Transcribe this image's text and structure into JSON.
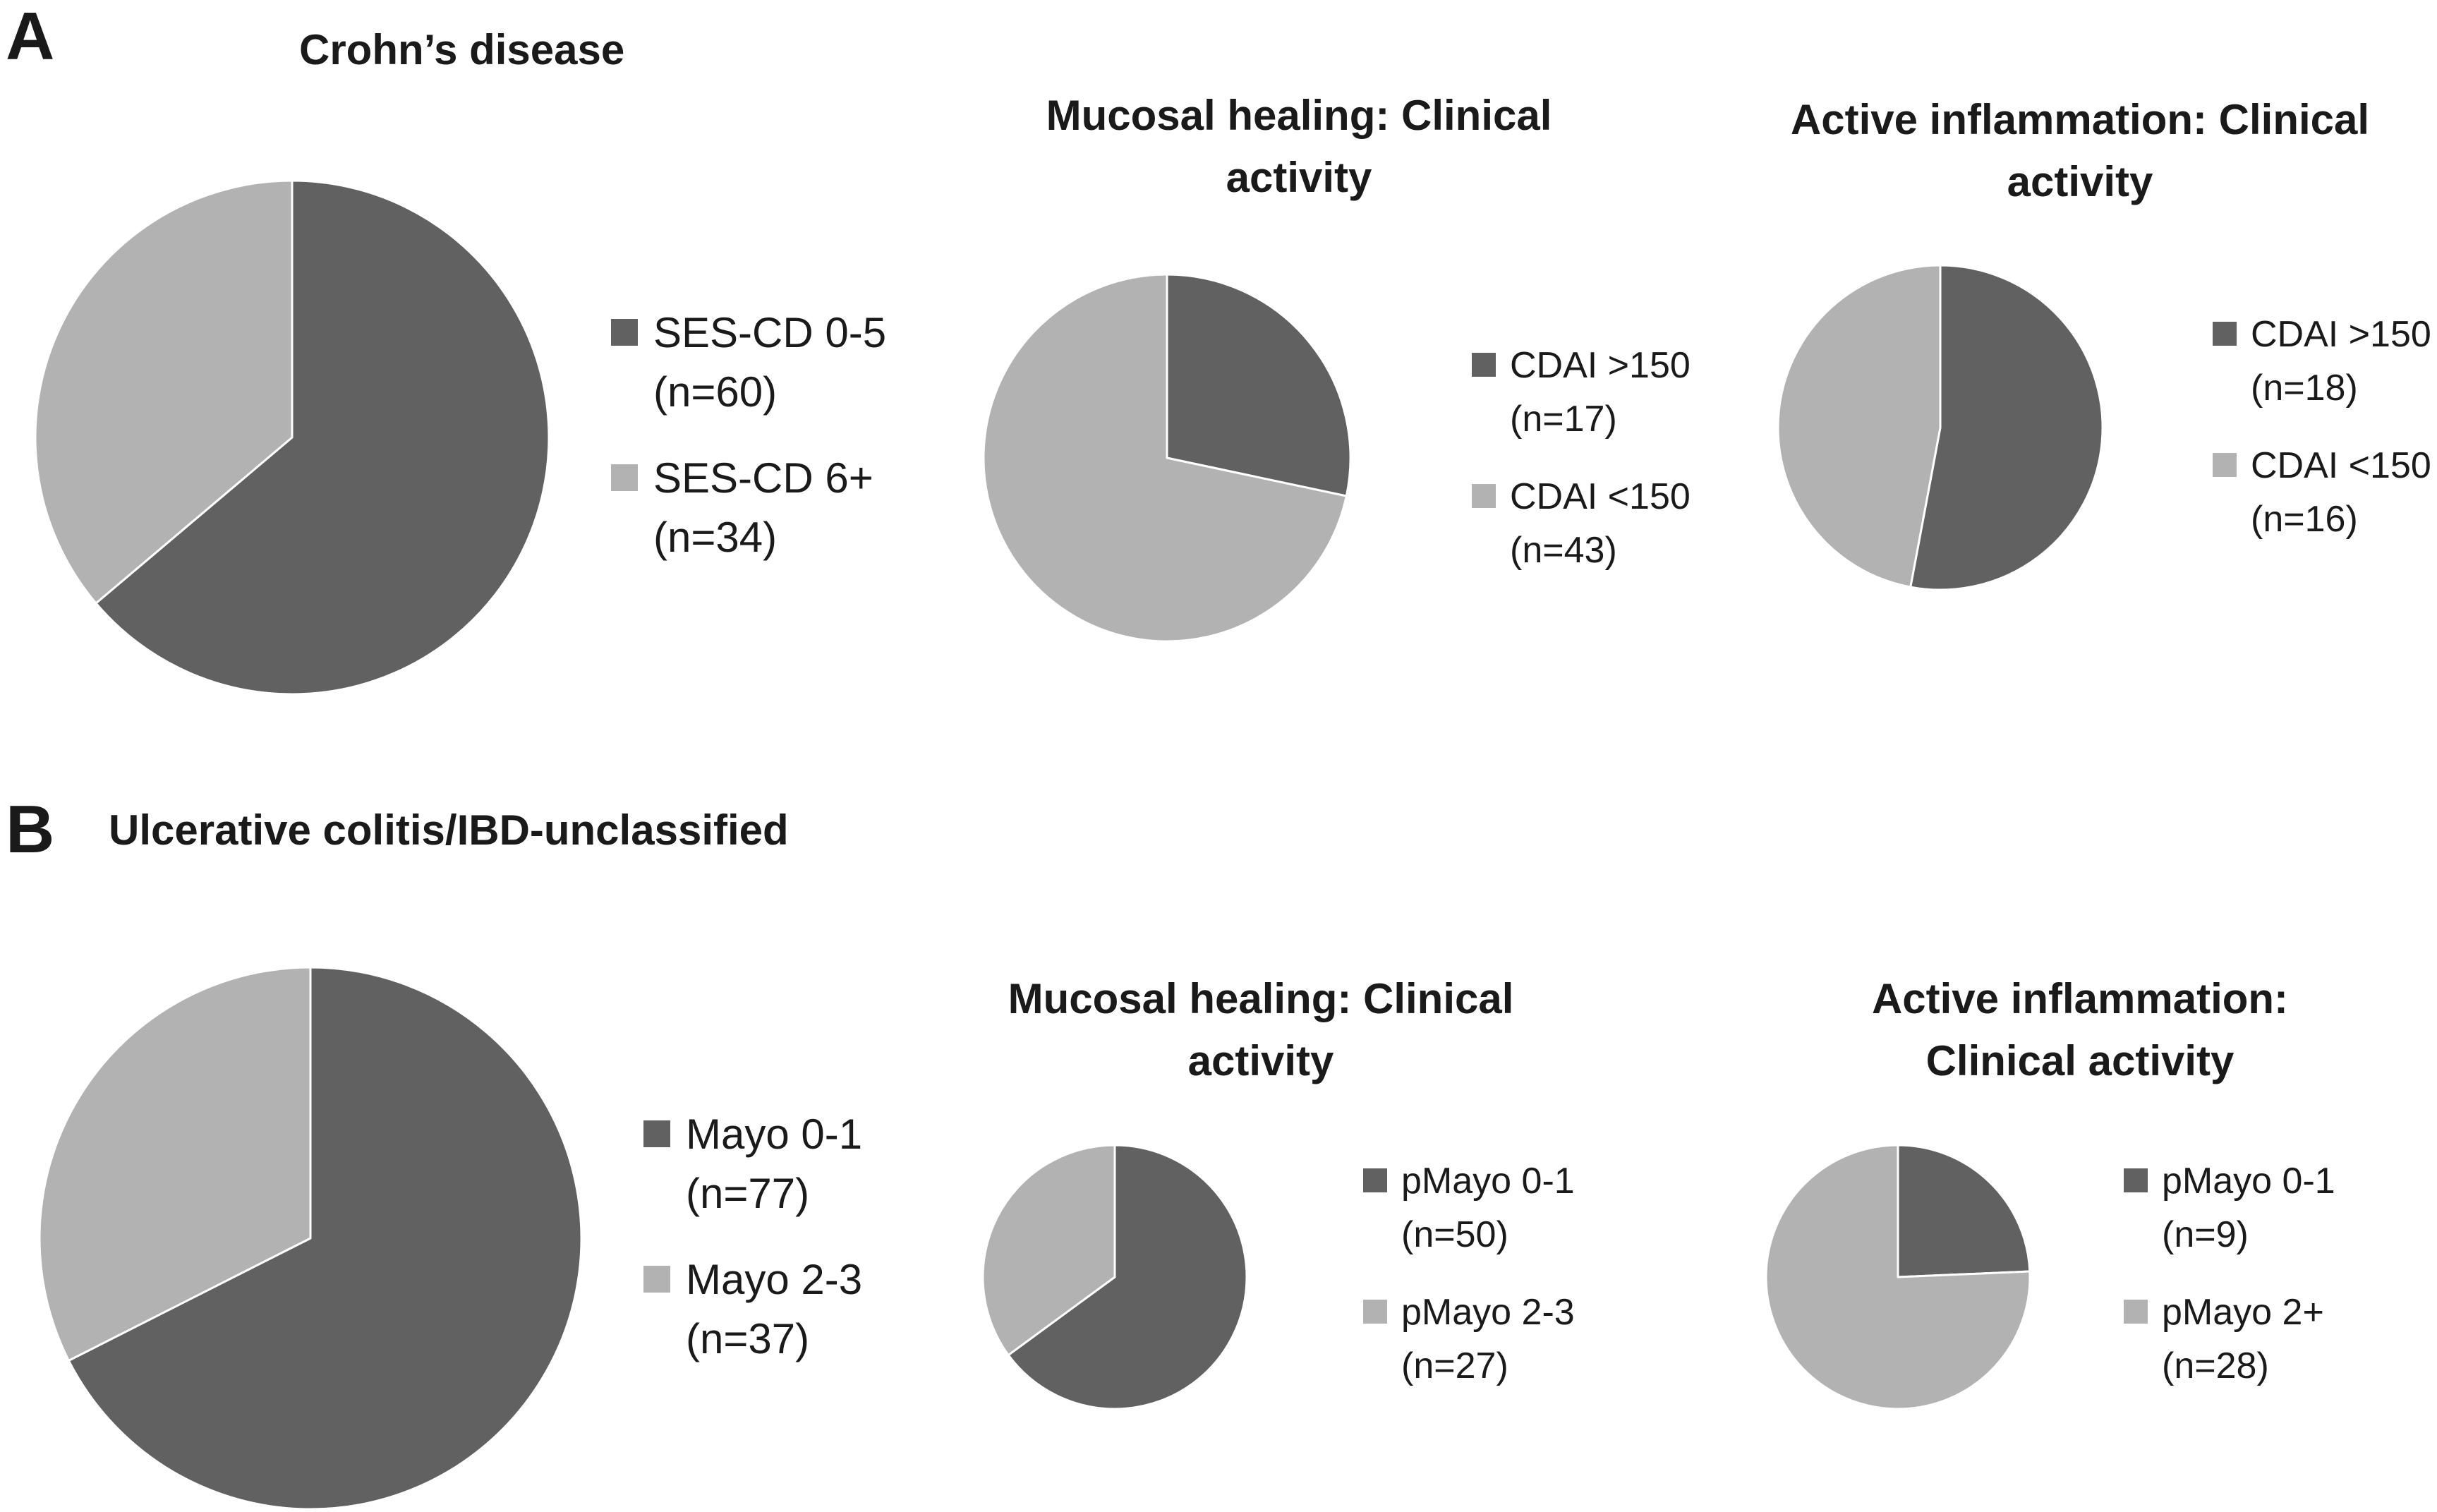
{
  "colors": {
    "dark": "#616161",
    "light": "#b2b2b2",
    "edge": "#ffffff"
  },
  "panels": {
    "A": {
      "letter": "A",
      "title": "Crohn’s disease"
    },
    "B": {
      "letter": "B",
      "title": "Ulcerative colitis/IBD-unclassified"
    }
  },
  "chart_titles": {
    "a2": [
      "Mucosal healing: Clinical",
      "activity"
    ],
    "a3": [
      "Active inflammation: Clinical",
      "activity"
    ],
    "b2": [
      "Mucosal healing: Clinical",
      "activity"
    ],
    "b3": [
      "Active inflammation:",
      "Clinical activity"
    ]
  },
  "chart_data": [
    {
      "id": "a1",
      "type": "pie",
      "title": "",
      "slices": [
        {
          "label": "SES-CD 0-5",
          "n": "(n=60)",
          "value": 60
        },
        {
          "label": "SES-CD 6+",
          "n": "(n=34)",
          "value": 34
        }
      ]
    },
    {
      "id": "a2",
      "type": "pie",
      "title": "Mucosal healing: Clinical activity",
      "slices": [
        {
          "label": "CDAI >150",
          "n": "(n=17)",
          "value": 17
        },
        {
          "label": "CDAI <150",
          "n": "(n=43)",
          "value": 43
        }
      ]
    },
    {
      "id": "a3",
      "type": "pie",
      "title": "Active inflammation: Clinical activity",
      "slices": [
        {
          "label": "CDAI >150",
          "n": "(n=18)",
          "value": 18
        },
        {
          "label": "CDAI <150",
          "n": "(n=16)",
          "value": 16
        }
      ]
    },
    {
      "id": "b1",
      "type": "pie",
      "title": "",
      "slices": [
        {
          "label": "Mayo 0-1",
          "n": "(n=77)",
          "value": 77
        },
        {
          "label": "Mayo 2-3",
          "n": "(n=37)",
          "value": 37
        }
      ]
    },
    {
      "id": "b2",
      "type": "pie",
      "title": "Mucosal healing: Clinical activity",
      "slices": [
        {
          "label": "pMayo 0-1",
          "n": "(n=50)",
          "value": 50
        },
        {
          "label": "pMayo 2-3",
          "n": "(n=27)",
          "value": 27
        }
      ]
    },
    {
      "id": "b3",
      "type": "pie",
      "title": "Active inflammation: Clinical activity",
      "slices": [
        {
          "label": "pMayo 0-1",
          "n": "(n=9)",
          "value": 9
        },
        {
          "label": "pMayo 2+",
          "n": "(n=28)",
          "value": 28
        }
      ]
    }
  ]
}
